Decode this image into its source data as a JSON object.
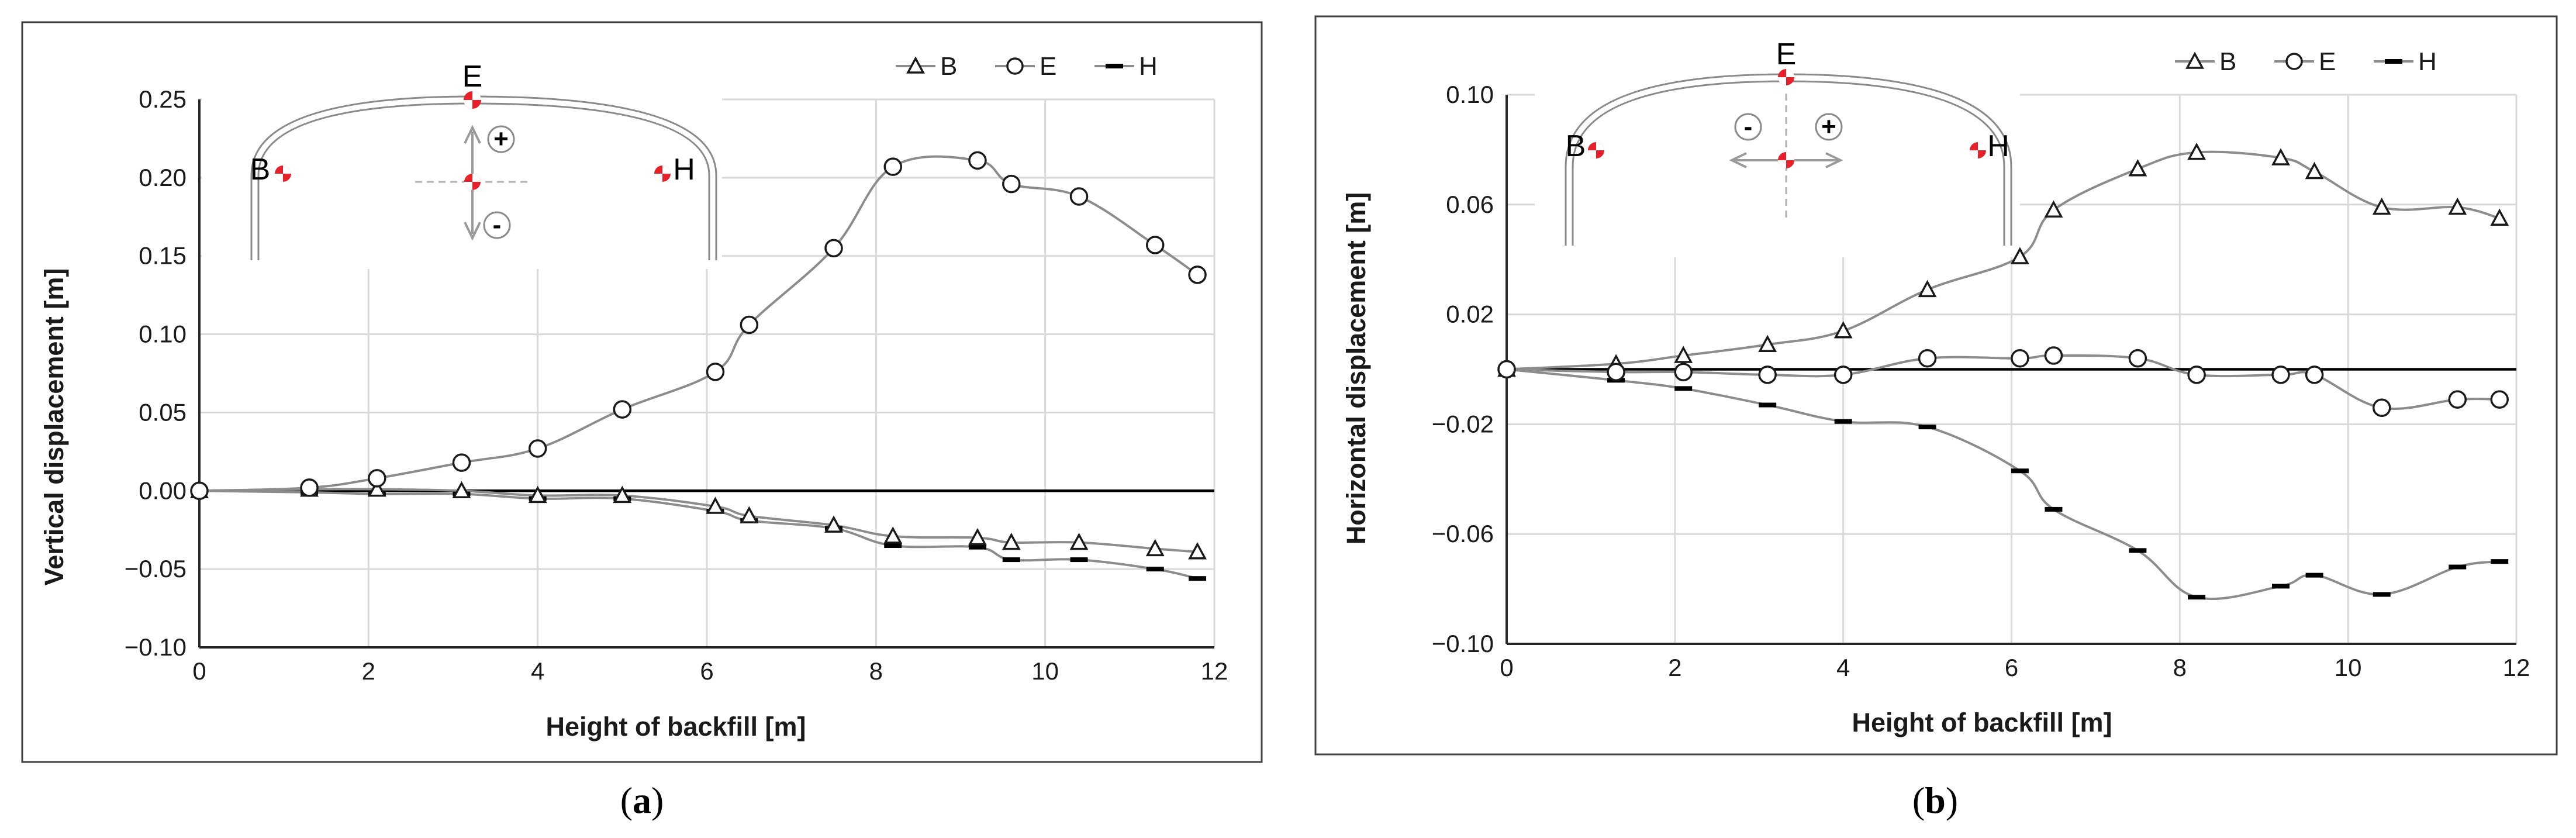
{
  "chart_data": [
    {
      "type": "line",
      "xlabel": "Height of backfill [m]",
      "ylabel": "Vertical displacement [m]",
      "xlim": [
        0,
        12
      ],
      "ylim": [
        -0.1,
        0.25
      ],
      "x_ticks": [
        "0",
        "2",
        "4",
        "6",
        "8",
        "10",
        "12"
      ],
      "y_ticks": [
        "0.25",
        "0.20",
        "0.15",
        "0.10",
        "0.05",
        "0.00",
        "−0.05",
        "−0.10"
      ],
      "legend_position": "top-right",
      "grid": true,
      "series": [
        {
          "name": "B",
          "marker": "triangle",
          "x": [
            0,
            1.3,
            2.1,
            3.1,
            4.0,
            5.0,
            6.1,
            6.5,
            7.5,
            8.2,
            9.2,
            9.6,
            10.4,
            11.3,
            11.8
          ],
          "y": [
            0,
            0.001,
            0.001,
            0.0,
            -0.003,
            -0.003,
            -0.01,
            -0.016,
            -0.022,
            -0.029,
            -0.03,
            -0.033,
            -0.033,
            -0.037,
            -0.039
          ]
        },
        {
          "name": "E",
          "marker": "circle",
          "x": [
            0,
            1.3,
            2.1,
            3.1,
            4.0,
            5.0,
            6.1,
            6.5,
            7.5,
            8.2,
            9.2,
            9.6,
            10.4,
            11.3,
            11.8
          ],
          "y": [
            0,
            0.002,
            0.008,
            0.018,
            0.027,
            0.052,
            0.076,
            0.106,
            0.155,
            0.207,
            0.211,
            0.196,
            0.188,
            0.157,
            0.138
          ]
        },
        {
          "name": "H",
          "marker": "dash",
          "x": [
            0,
            1.3,
            2.1,
            3.1,
            4.0,
            5.0,
            6.1,
            6.5,
            7.5,
            8.2,
            9.2,
            9.6,
            10.4,
            11.3,
            11.8
          ],
          "y": [
            0,
            -0.001,
            -0.002,
            -0.002,
            -0.005,
            -0.005,
            -0.013,
            -0.019,
            -0.024,
            -0.035,
            -0.036,
            -0.044,
            -0.044,
            -0.05,
            -0.056
          ]
        }
      ],
      "inset": {
        "points": [
          "E",
          "B",
          "H"
        ],
        "signs": [
          "+",
          "-"
        ]
      },
      "caption": "a"
    },
    {
      "type": "line",
      "xlabel": "Height of backfill [m]",
      "ylabel": "Horizontal displacement [m]",
      "xlim": [
        0,
        12
      ],
      "ylim": [
        -0.1,
        0.1
      ],
      "x_ticks": [
        "0",
        "2",
        "4",
        "6",
        "8",
        "10",
        "12"
      ],
      "y_ticks": [
        "0.10",
        "0.06",
        "0.02",
        "−0.02",
        "−0.06",
        "−0.10"
      ],
      "legend_position": "top-right",
      "grid": true,
      "series": [
        {
          "name": "B",
          "marker": "triangle",
          "x": [
            0,
            1.3,
            2.1,
            3.1,
            4.0,
            5.0,
            6.1,
            6.5,
            7.5,
            8.2,
            9.2,
            9.6,
            10.4,
            11.3,
            11.8
          ],
          "y": [
            0,
            0.002,
            0.005,
            0.009,
            0.014,
            0.029,
            0.041,
            0.058,
            0.073,
            0.079,
            0.077,
            0.072,
            0.059,
            0.059,
            0.055
          ]
        },
        {
          "name": "E",
          "marker": "circle",
          "x": [
            0,
            1.3,
            2.1,
            3.1,
            4.0,
            5.0,
            6.1,
            6.5,
            7.5,
            8.2,
            9.2,
            9.6,
            10.4,
            11.3,
            11.8
          ],
          "y": [
            0,
            -0.001,
            -0.001,
            -0.002,
            -0.002,
            0.004,
            0.004,
            0.005,
            0.004,
            -0.002,
            -0.002,
            -0.002,
            -0.014,
            -0.011,
            -0.011
          ]
        },
        {
          "name": "H",
          "marker": "dash",
          "x": [
            0,
            1.3,
            2.1,
            3.1,
            4.0,
            5.0,
            6.1,
            6.5,
            7.5,
            8.2,
            9.2,
            9.6,
            10.4,
            11.3,
            11.8
          ],
          "y": [
            0,
            -0.004,
            -0.007,
            -0.013,
            -0.019,
            -0.021,
            -0.037,
            -0.051,
            -0.066,
            -0.083,
            -0.079,
            -0.075,
            -0.082,
            -0.072,
            -0.07
          ]
        }
      ],
      "inset": {
        "points": [
          "E",
          "B",
          "H"
        ],
        "signs": [
          "-",
          "+"
        ]
      },
      "caption": "b"
    }
  ],
  "colors": {
    "line": "#8c8c8c",
    "marker_stroke": "#1a1a1a",
    "inset_point": "#e8202a"
  }
}
